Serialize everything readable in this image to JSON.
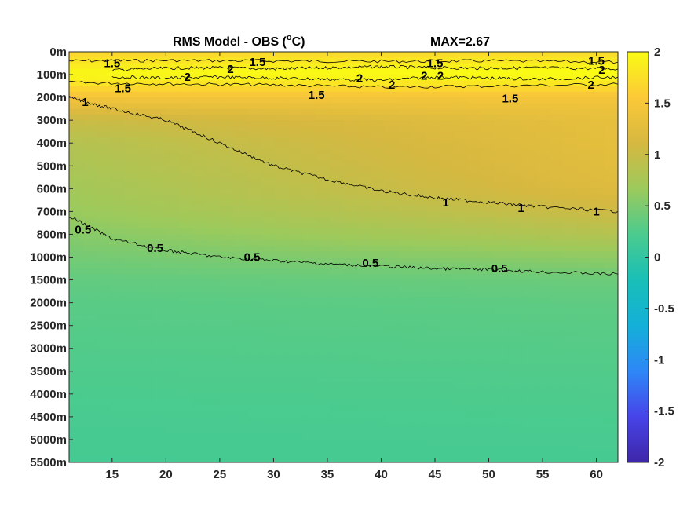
{
  "chart_data": {
    "type": "heatmap",
    "title": "RMS Model - OBS (",
    "title_superscript": "o",
    "title_unit_suffix": "C)",
    "max_label": "MAX=2.67",
    "xlim": [
      11,
      62
    ],
    "x_ticks": [
      15,
      20,
      25,
      30,
      35,
      40,
      45,
      50,
      55,
      60
    ],
    "depth_levels": [
      "0m",
      "100m",
      "200m",
      "300m",
      "400m",
      "500m",
      "600m",
      "700m",
      "800m",
      "1000m",
      "1500m",
      "2000m",
      "2500m",
      "3000m",
      "3500m",
      "4000m",
      "4500m",
      "5000m",
      "5500m"
    ],
    "colorbar": {
      "ticks": [
        2,
        1.5,
        1,
        0.5,
        0,
        -0.5,
        -1,
        -1.5,
        -2
      ],
      "tick_labels": [
        "2",
        "1.5",
        "1",
        "0.5",
        "0",
        "-0.5",
        "-1",
        "-1.5",
        "-2"
      ],
      "clim": [
        -2,
        2
      ],
      "colormap": "parula",
      "colors": [
        "#3e26a8",
        "#4744e8",
        "#2e87f7",
        "#14b0d8",
        "#19bfb7",
        "#4bcb8e",
        "#9cca5c",
        "#d6b840",
        "#fcc938",
        "#f9fb14"
      ]
    },
    "field_profile": {
      "depth_levels": [
        "0m",
        "100m",
        "200m",
        "300m",
        "400m",
        "500m",
        "600m",
        "700m",
        "800m",
        "1000m",
        "1500m",
        "2000m",
        "2500m",
        "3000m",
        "3500m",
        "4000m",
        "4500m",
        "5000m",
        "5500m"
      ],
      "values_west": [
        1.65,
        2.0,
        1.45,
        1.0,
        0.85,
        0.78,
        0.72,
        0.66,
        0.55,
        0.45,
        0.35,
        0.3,
        0.28,
        0.26,
        0.24,
        0.22,
        0.2,
        0.18,
        0.17
      ],
      "values_east": [
        1.7,
        2.05,
        1.45,
        1.3,
        1.28,
        1.25,
        1.2,
        1.05,
        0.85,
        0.6,
        0.4,
        0.33,
        0.3,
        0.28,
        0.26,
        0.24,
        0.22,
        0.2,
        0.18
      ]
    },
    "contours": [
      {
        "level": 1.5,
        "label": "1.5",
        "x": [
          11,
          20,
          30,
          40,
          50,
          62
        ],
        "y": [
          0.4,
          0.38,
          0.4,
          0.42,
          0.4,
          0.45
        ]
      },
      {
        "level": 1.5,
        "label": "1.5",
        "x": [
          11,
          20,
          30,
          40,
          50,
          62
        ],
        "y": [
          1.35,
          1.4,
          1.45,
          1.55,
          1.5,
          1.42
        ]
      },
      {
        "level": 2,
        "label": "2",
        "x": [
          15,
          20,
          25,
          30,
          35,
          40,
          45,
          50,
          55,
          62
        ],
        "y": [
          0.8,
          0.72,
          0.7,
          0.75,
          0.7,
          0.65,
          0.7,
          0.72,
          0.7,
          0.75
        ]
      },
      {
        "level": 2,
        "label": "2",
        "x": [
          15,
          20,
          25,
          30,
          35,
          40,
          45,
          50,
          55,
          62
        ],
        "y": [
          1.1,
          1.15,
          1.1,
          1.15,
          1.2,
          1.25,
          1.1,
          1.15,
          1.2,
          1.1
        ]
      },
      {
        "level": 1,
        "label": "1",
        "x": [
          11,
          15,
          20,
          25,
          30,
          35,
          40,
          45,
          50,
          55,
          62
        ],
        "y": [
          2.0,
          2.5,
          3.0,
          4.0,
          5.0,
          5.6,
          6.1,
          6.4,
          6.6,
          6.8,
          7.0
        ]
      },
      {
        "level": 0.5,
        "label": "0.5",
        "x": [
          11,
          15,
          20,
          25,
          30,
          35,
          40,
          45,
          50,
          55,
          62
        ],
        "y": [
          7.2,
          8.2,
          8.7,
          9.0,
          9.15,
          9.3,
          9.4,
          9.5,
          9.55,
          9.65,
          9.75
        ]
      }
    ],
    "contour_labels": [
      {
        "text": "1.5",
        "x": 15,
        "y": 0.5
      },
      {
        "text": "1.5",
        "x": 28.5,
        "y": 0.45
      },
      {
        "text": "1.5",
        "x": 45,
        "y": 0.5
      },
      {
        "text": "1.5",
        "x": 60,
        "y": 0.4
      },
      {
        "text": "2",
        "x": 22,
        "y": 1.1
      },
      {
        "text": "2",
        "x": 26,
        "y": 0.75
      },
      {
        "text": "2",
        "x": 38,
        "y": 1.15
      },
      {
        "text": "2",
        "x": 41,
        "y": 1.45
      },
      {
        "text": "2",
        "x": 44,
        "y": 1.05
      },
      {
        "text": "2",
        "x": 45.5,
        "y": 1.05
      },
      {
        "text": "2",
        "x": 60.5,
        "y": 0.8
      },
      {
        "text": "2",
        "x": 59.5,
        "y": 1.45
      },
      {
        "text": "1.5",
        "x": 16,
        "y": 1.6
      },
      {
        "text": "1.5",
        "x": 34,
        "y": 1.9
      },
      {
        "text": "1.5",
        "x": 52,
        "y": 2.05
      },
      {
        "text": "1",
        "x": 12.5,
        "y": 2.2
      },
      {
        "text": "1",
        "x": 46,
        "y": 6.6
      },
      {
        "text": "1",
        "x": 53,
        "y": 6.85
      },
      {
        "text": "1",
        "x": 60,
        "y": 7.0
      },
      {
        "text": "0.5",
        "x": 12.3,
        "y": 7.8
      },
      {
        "text": "0.5",
        "x": 19,
        "y": 8.6
      },
      {
        "text": "0.5",
        "x": 28,
        "y": 9.0
      },
      {
        "text": "0.5",
        "x": 39,
        "y": 9.25
      },
      {
        "text": "0.5",
        "x": 51,
        "y": 9.5
      }
    ]
  }
}
